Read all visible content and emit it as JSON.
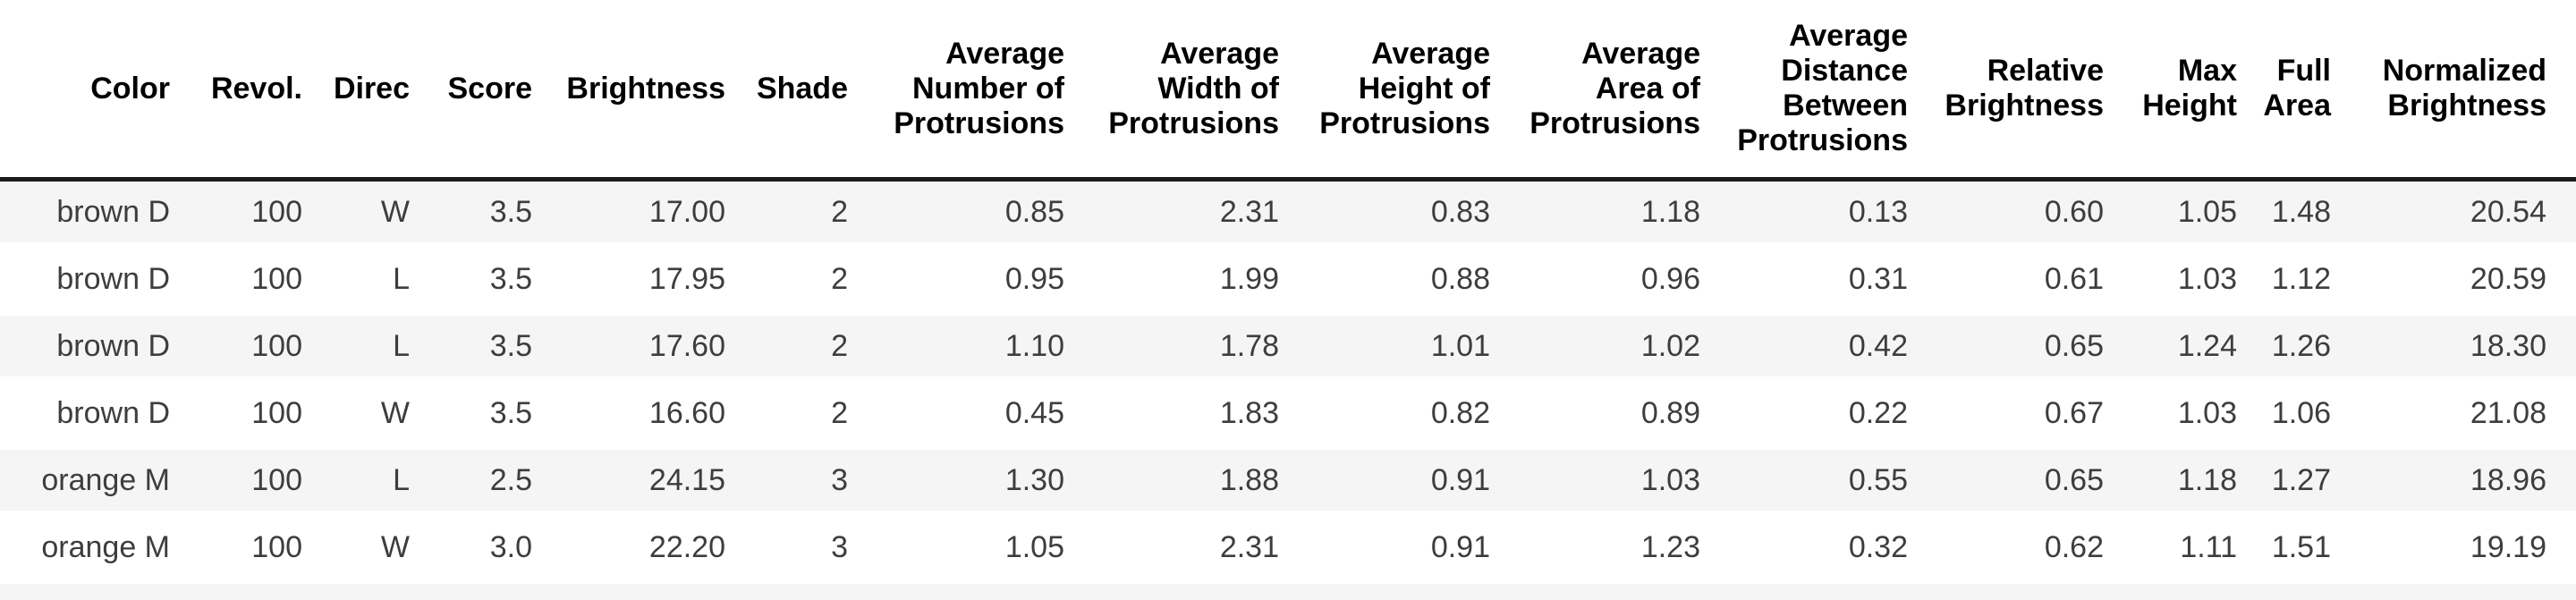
{
  "colors": {
    "background": "#ffffff",
    "row_stripe": "#f5f5f5",
    "header_rule": "#1a1a1a",
    "header_text": "#000000",
    "body_text": "#3d3d3d"
  },
  "chart_data": {
    "type": "table",
    "title": "",
    "columns": [
      "Color",
      "Revol.",
      "Direc",
      "Score",
      "Brightness",
      "Shade",
      "Average Number of Protrusions",
      "Average Width of Protrusions",
      "Average Height of Protrusions",
      "Average Area of Protrusions",
      "Average Distance Between Protrusions",
      "Relative Brightness",
      "Max Height",
      "Full Area",
      "Normalized Brightness"
    ],
    "rows": [
      [
        "brown D",
        "100",
        "W",
        "3.5",
        "17.00",
        "2",
        "0.85",
        "2.31",
        "0.83",
        "1.18",
        "0.13",
        "0.60",
        "1.05",
        "1.48",
        "20.54"
      ],
      [
        "brown D",
        "100",
        "L",
        "3.5",
        "17.95",
        "2",
        "0.95",
        "1.99",
        "0.88",
        "0.96",
        "0.31",
        "0.61",
        "1.03",
        "1.12",
        "20.59"
      ],
      [
        "brown D",
        "100",
        "L",
        "3.5",
        "17.60",
        "2",
        "1.10",
        "1.78",
        "1.01",
        "1.02",
        "0.42",
        "0.65",
        "1.24",
        "1.26",
        "18.30"
      ],
      [
        "brown D",
        "100",
        "W",
        "3.5",
        "16.60",
        "2",
        "0.45",
        "1.83",
        "0.82",
        "0.89",
        "0.22",
        "0.67",
        "1.03",
        "1.06",
        "21.08"
      ],
      [
        "orange M",
        "100",
        "L",
        "2.5",
        "24.15",
        "3",
        "1.30",
        "1.88",
        "0.91",
        "1.03",
        "0.55",
        "0.65",
        "1.18",
        "1.27",
        "18.96"
      ],
      [
        "orange M",
        "100",
        "W",
        "3.0",
        "22.20",
        "3",
        "1.05",
        "2.31",
        "0.91",
        "1.23",
        "0.32",
        "0.62",
        "1.11",
        "1.51",
        "19.19"
      ]
    ],
    "layout": {
      "alignment": "right",
      "striped_rows": "odd",
      "header_position": "top",
      "partial_row_stripe_at_bottom": true
    }
  }
}
